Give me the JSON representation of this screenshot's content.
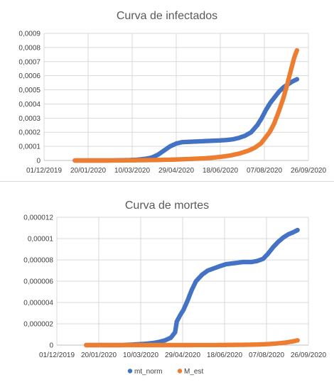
{
  "chart_data": [
    {
      "type": "scatter",
      "title": "Curva de infectados",
      "xlabel": "",
      "ylabel": "",
      "grid": true,
      "legend": "none",
      "x_ticks": [
        "01/12/2019",
        "20/01/2020",
        "10/03/2020",
        "29/04/2020",
        "18/06/2020",
        "07/08/2020",
        "26/09/2020"
      ],
      "xlim": [
        "2019-12-01",
        "2020-09-26"
      ],
      "y_ticks": [
        "0",
        "0,0001",
        "0,0002",
        "0,0003",
        "0,0004",
        "0,0005",
        "0,0006",
        "0,0007",
        "0,0008",
        "0,0009"
      ],
      "ylim": [
        0,
        0.0009
      ],
      "series": [
        {
          "name": "mt_norm",
          "color": "#4472c4",
          "x": [
            "2020-01-05",
            "2020-01-20",
            "2020-02-10",
            "2020-03-01",
            "2020-03-15",
            "2020-03-25",
            "2020-04-01",
            "2020-04-08",
            "2020-04-15",
            "2020-04-22",
            "2020-04-29",
            "2020-05-06",
            "2020-05-13",
            "2020-05-20",
            "2020-05-27",
            "2020-06-03",
            "2020-06-10",
            "2020-06-18",
            "2020-06-25",
            "2020-07-02",
            "2020-07-09",
            "2020-07-16",
            "2020-07-23",
            "2020-07-30",
            "2020-08-04",
            "2020-08-09",
            "2020-08-14",
            "2020-08-19",
            "2020-08-24",
            "2020-08-29",
            "2020-09-03",
            "2020-09-08",
            "2020-09-13"
          ],
          "y": [
            0,
            0,
            0,
            2e-06,
            5e-06,
            1.2e-05,
            2e-05,
            4e-05,
            7e-05,
            0.0001,
            0.00012,
            0.00013,
            0.000132,
            0.000134,
            0.000136,
            0.000138,
            0.00014,
            0.000142,
            0.000145,
            0.00015,
            0.00016,
            0.000175,
            0.0002,
            0.00025,
            0.0003,
            0.00036,
            0.00041,
            0.00045,
            0.00049,
            0.00052,
            0.00054,
            0.00056,
            0.000575
          ]
        },
        {
          "name": "M_est",
          "color": "#ed7d31",
          "x": [
            "2020-01-05",
            "2020-01-20",
            "2020-02-10",
            "2020-03-01",
            "2020-03-20",
            "2020-04-10",
            "2020-04-29",
            "2020-05-15",
            "2020-05-30",
            "2020-06-10",
            "2020-06-20",
            "2020-06-30",
            "2020-07-10",
            "2020-07-20",
            "2020-07-27",
            "2020-08-03",
            "2020-08-08",
            "2020-08-13",
            "2020-08-18",
            "2020-08-23",
            "2020-08-28",
            "2020-09-02",
            "2020-09-07",
            "2020-09-10",
            "2020-09-13"
          ],
          "y": [
            0,
            0,
            0,
            1e-06,
            2e-06,
            4e-06,
            7e-06,
            1.1e-05,
            1.5e-05,
            2e-05,
            2.7e-05,
            3.6e-05,
            5e-05,
            7e-05,
            9e-05,
            0.00012,
            0.00016,
            0.0002,
            0.00026,
            0.00034,
            0.00043,
            0.00054,
            0.00066,
            0.00073,
            0.00078
          ]
        }
      ]
    },
    {
      "type": "scatter",
      "title": "Curva de mortes",
      "xlabel": "",
      "ylabel": "",
      "grid": true,
      "legend": "bottom",
      "x_ticks": [
        "01/12/2019",
        "20/01/2020",
        "10/03/2020",
        "29/04/2020",
        "18/06/2020",
        "07/08/2020",
        "26/09/2020"
      ],
      "xlim": [
        "2019-12-01",
        "2020-09-26"
      ],
      "y_ticks": [
        "0",
        "0,000002",
        "0,000004",
        "0,000006",
        "0,000008",
        "0,00001",
        "0,000012"
      ],
      "ylim": [
        0,
        1.2e-05
      ],
      "series": [
        {
          "name": "mt_norm",
          "color": "#4472c4",
          "x": [
            "2020-01-05",
            "2020-01-25",
            "2020-02-15",
            "2020-03-01",
            "2020-03-15",
            "2020-03-25",
            "2020-04-01",
            "2020-04-08",
            "2020-04-15",
            "2020-04-20",
            "2020-04-22",
            "2020-04-26",
            "2020-04-30",
            "2020-05-05",
            "2020-05-10",
            "2020-05-15",
            "2020-05-22",
            "2020-05-29",
            "2020-06-05",
            "2020-06-12",
            "2020-06-20",
            "2020-06-30",
            "2020-07-10",
            "2020-07-20",
            "2020-07-27",
            "2020-08-03",
            "2020-08-09",
            "2020-08-15",
            "2020-08-21",
            "2020-08-27",
            "2020-09-02",
            "2020-09-08",
            "2020-09-13"
          ],
          "y": [
            0,
            0,
            0,
            5e-08,
            1.2e-07,
            2e-07,
            3e-07,
            4.5e-07,
            7e-07,
            1.2e-06,
            2.2e-06,
            2.8e-06,
            3.3e-06,
            4.2e-06,
            5.2e-06,
            6e-06,
            6.6e-06,
            7e-06,
            7.2e-06,
            7.4e-06,
            7.6e-06,
            7.7e-06,
            7.8e-06,
            7.8e-06,
            7.9e-06,
            8.1e-06,
            8.6e-06,
            9.2e-06,
            9.7e-06,
            1.01e-05,
            1.04e-05,
            1.06e-05,
            1.08e-05
          ]
        },
        {
          "name": "M_est",
          "color": "#ed7d31",
          "x": [
            "2020-01-05",
            "2020-02-15",
            "2020-03-20",
            "2020-04-29",
            "2020-06-10",
            "2020-07-10",
            "2020-07-30",
            "2020-08-10",
            "2020-08-20",
            "2020-08-30",
            "2020-09-06",
            "2020-09-13"
          ],
          "y": [
            0,
            0,
            0,
            0,
            1e-08,
            3e-08,
            6e-08,
            1e-07,
            1.6e-07,
            2.4e-07,
            3.3e-07,
            4.5e-07
          ]
        }
      ]
    }
  ]
}
